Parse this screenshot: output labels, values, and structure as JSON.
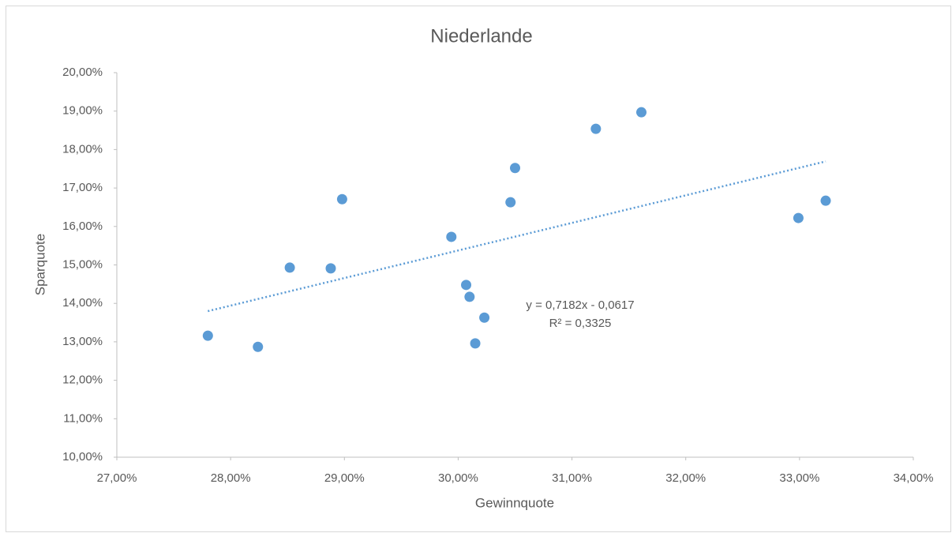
{
  "chart_data": {
    "type": "scatter",
    "title": "Niederlande",
    "x_label": "Gewinnquote",
    "y_label": "Sparquote",
    "series": [
      {
        "color": "#5b9bd5",
        "x": [
          27.8,
          28.24,
          28.52,
          28.88,
          28.98,
          29.94,
          30.07,
          30.1,
          30.23,
          30.15,
          30.46,
          30.5,
          31.21,
          31.61,
          32.99,
          33.23
        ],
        "values": [
          13.16,
          12.87,
          14.93,
          14.91,
          16.71,
          15.73,
          14.48,
          14.17,
          13.63,
          12.96,
          16.63,
          17.52,
          18.54,
          18.97,
          16.22,
          16.67
        ]
      }
    ],
    "trendline": {
      "type": "linear",
      "style": "dotted",
      "equation": "y = 0,7182x - 0,0617",
      "r_squared": "R² = 0,3325"
    },
    "xlim": [
      27,
      34
    ],
    "xticks": [
      {
        "value": 27,
        "label": "27,00%"
      },
      {
        "value": 28,
        "label": "28,00%"
      },
      {
        "value": 29,
        "label": "29,00%"
      },
      {
        "value": 30,
        "label": "30,00%"
      },
      {
        "value": 31,
        "label": "31,00%"
      },
      {
        "value": 32,
        "label": "32,00%"
      },
      {
        "value": 33,
        "label": "33,00%"
      },
      {
        "value": 34,
        "label": "34,00%"
      }
    ],
    "ylim": [
      10,
      20
    ],
    "yticks": [
      {
        "value": 10,
        "label": "10,00%"
      },
      {
        "value": 11,
        "label": "11,00%"
      },
      {
        "value": 12,
        "label": "12,00%"
      },
      {
        "value": 13,
        "label": "13,00%"
      },
      {
        "value": 14,
        "label": "14,00%"
      },
      {
        "value": 15,
        "label": "15,00%"
      },
      {
        "value": 16,
        "label": "16,00%"
      },
      {
        "value": 17,
        "label": "17,00%"
      },
      {
        "value": 18,
        "label": "18,00%"
      },
      {
        "value": 19,
        "label": "19,00%"
      },
      {
        "value": 20,
        "label": "20,00%"
      }
    ],
    "grid": false
  }
}
